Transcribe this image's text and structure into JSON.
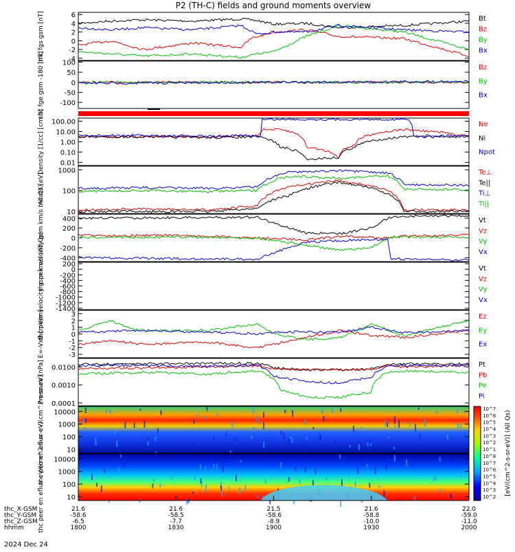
{
  "title": "P2 (TH-C) fields and ground moments overview",
  "colors": {
    "black": "#000000",
    "red": "#e00000",
    "green": "#00c000",
    "blue": "#0000e0"
  },
  "date_label": "2024 Dec 24",
  "colorbar": {
    "label": "[eV/(cm^2-s-sr-eV)] (All Qs)",
    "ticks": [
      "10^7",
      "10^6",
      "10^5",
      "10^4",
      "10^3",
      "10^2",
      "10^1",
      "10^8",
      "10^7",
      "10^6",
      "10^5",
      "10^4",
      "10^3",
      "10^2"
    ]
  },
  "x_axis": {
    "row_labels": [
      "thc_X-GSM",
      "thc_Y-GSM",
      "thc_Z-GSM",
      "hhmm"
    ],
    "ticks": [
      {
        "time": "1800",
        "values": [
          "21.6",
          "-58.6",
          "-6.5",
          "1800"
        ]
      },
      {
        "time": "1830",
        "values": [
          "21.6",
          "-58.5",
          "-7.7",
          "1830"
        ]
      },
      {
        "time": "1900",
        "values": [
          "21.5",
          "-58.6",
          "-8.9",
          "1900"
        ]
      },
      {
        "time": "1930",
        "values": [
          "21.6",
          "-58.8",
          "-10.0",
          "1930"
        ]
      },
      {
        "time": "2000",
        "values": [
          "22.0",
          "-59.0",
          "-11.0",
          "2000"
        ]
      }
    ]
  },
  "chart_data": [
    {
      "type": "line",
      "ylabel": "thc fgs gsm [nT]",
      "ylim": [
        -4.5,
        6.5
      ],
      "yticks": [
        "6",
        "4",
        "2",
        "0",
        "-2",
        "-4"
      ],
      "series": [
        {
          "name": "Bt",
          "color": "#000000",
          "x": [
            0,
            10,
            20,
            35,
            50,
            55,
            60,
            70,
            80,
            100,
            120
          ],
          "y": [
            4.0,
            4.5,
            4.8,
            4.5,
            5.0,
            4.6,
            3.8,
            4.0,
            3.0,
            3.5,
            4.5
          ]
        },
        {
          "name": "Bz",
          "color": "#e00000",
          "x": [
            0,
            10,
            20,
            35,
            50,
            53,
            60,
            70,
            80,
            100,
            120
          ],
          "y": [
            -1.0,
            0.0,
            -2.0,
            -0.5,
            -1.5,
            0.5,
            2.0,
            2.5,
            1.0,
            0.5,
            -3.5
          ]
        },
        {
          "name": "By",
          "color": "#00c000",
          "x": [
            0,
            10,
            20,
            35,
            50,
            55,
            60,
            70,
            80,
            100,
            120
          ],
          "y": [
            -2.5,
            -3.0,
            -3.5,
            -3.0,
            -3.8,
            -3.0,
            -2.5,
            1.0,
            3.5,
            2.0,
            -2.0
          ]
        },
        {
          "name": "Bx",
          "color": "#0000e0",
          "x": [
            0,
            10,
            20,
            35,
            50,
            55,
            60,
            70,
            80,
            100,
            120
          ],
          "y": [
            3.0,
            2.5,
            3.0,
            2.5,
            3.5,
            1.5,
            2.0,
            2.0,
            3.5,
            2.5,
            2.0
          ]
        }
      ]
    },
    {
      "type": "line",
      "ylabel": "thc fge gsm -180 [nT]",
      "ylim": [
        -130,
        105
      ],
      "yticks": [
        "100",
        "50",
        "0",
        "-50",
        "-100"
      ],
      "series": [
        {
          "name": "Bz",
          "color": "#e00000",
          "x": [
            0,
            120
          ],
          "y": [
            0,
            0
          ]
        },
        {
          "name": "By",
          "color": "#00c000",
          "x": [
            0,
            120
          ],
          "y": [
            0,
            0
          ]
        },
        {
          "name": "Bx",
          "color": "#0000e0",
          "x": [
            0,
            30,
            60,
            90,
            120
          ],
          "y": [
            -5,
            -3,
            0,
            2,
            5
          ]
        }
      ]
    },
    {
      "type": "line",
      "ylabel": "Density [1/cc] [cm-3]",
      "scale": "log",
      "ylim": [
        0.005,
        200
      ],
      "yticks": [
        "100.00",
        "10.00",
        "1.00",
        "0.10",
        "0.01"
      ],
      "series": [
        {
          "name": "Ne",
          "color": "#e00000",
          "x": [
            0,
            20,
            40,
            55,
            57,
            62,
            70,
            80,
            85,
            100,
            120
          ],
          "y": [
            3,
            3.5,
            3,
            4,
            15,
            15,
            0.3,
            0.03,
            0.5,
            15,
            3
          ]
        },
        {
          "name": "Ni",
          "color": "#000000",
          "x": [
            0,
            20,
            40,
            55,
            62,
            70,
            80,
            85,
            100,
            120
          ],
          "y": [
            3,
            3,
            2.5,
            3,
            0.3,
            0.02,
            0.03,
            0.3,
            3,
            3
          ]
        },
        {
          "name": "Npot",
          "color": "#0000e0",
          "x": [
            0,
            20,
            40,
            55,
            56,
            56.5,
            60,
            70,
            80,
            85,
            100,
            101,
            103,
            120
          ],
          "y": [
            4,
            4,
            3.5,
            4,
            4,
            150,
            150,
            150,
            150,
            150,
            150,
            150,
            4,
            4
          ]
        }
      ]
    },
    {
      "type": "line",
      "ylabel": "moat3 [eV]",
      "scale": "log",
      "ylim": [
        8,
        1500
      ],
      "yticks": [
        "1000",
        "100",
        "10"
      ],
      "series": [
        {
          "name": "Te⊥",
          "color": "#e00000",
          "x": [
            0,
            20,
            40,
            55,
            65,
            80,
            95,
            100,
            120
          ],
          "y": [
            12,
            13,
            12,
            18,
            150,
            300,
            100,
            12,
            12
          ]
        },
        {
          "name": "Te||",
          "color": "#000000",
          "x": [
            0,
            20,
            40,
            55,
            65,
            80,
            95,
            100,
            120
          ],
          "y": [
            10,
            10,
            10,
            14,
            60,
            250,
            70,
            10,
            10
          ]
        },
        {
          "name": "Ti⊥",
          "color": "#0000e0",
          "x": [
            0,
            20,
            40,
            55,
            65,
            80,
            95,
            100,
            120
          ],
          "y": [
            130,
            140,
            130,
            150,
            800,
            900,
            700,
            200,
            180
          ]
        },
        {
          "name": "Ti||",
          "color": "#00c000",
          "x": [
            0,
            20,
            40,
            55,
            65,
            80,
            95,
            100,
            120
          ],
          "y": [
            90,
            100,
            90,
            100,
            500,
            400,
            500,
            120,
            110
          ]
        }
      ]
    },
    {
      "type": "line",
      "ylabel": "thc peir velocity gsm km/s (All Qs)",
      "ylim": [
        -480,
        480
      ],
      "yticks": [
        "400",
        "200",
        "0",
        "-200",
        "-400"
      ],
      "series": [
        {
          "name": "Vt",
          "color": "#000000",
          "x": [
            0,
            30,
            55,
            60,
            70,
            80,
            90,
            95,
            100,
            120
          ],
          "y": [
            400,
            410,
            420,
            300,
            100,
            80,
            200,
            400,
            440,
            450
          ]
        },
        {
          "name": "Vz",
          "color": "#e00000",
          "x": [
            0,
            30,
            55,
            70,
            80,
            95,
            100,
            120
          ],
          "y": [
            50,
            50,
            0,
            -40,
            30,
            0,
            40,
            60
          ]
        },
        {
          "name": "Vy",
          "color": "#00c000",
          "x": [
            0,
            30,
            55,
            70,
            80,
            90,
            95,
            100,
            120
          ],
          "y": [
            0,
            20,
            0,
            -150,
            -250,
            -200,
            0,
            20,
            0
          ]
        },
        {
          "name": "Vx",
          "color": "#0000e0",
          "x": [
            0,
            30,
            55,
            60,
            70,
            80,
            95,
            96,
            100,
            120
          ],
          "y": [
            -400,
            -420,
            -430,
            -300,
            -80,
            -60,
            -20,
            -420,
            -430,
            -450
          ]
        }
      ]
    },
    {
      "type": "line",
      "ylabel": "thc peer velocity gsm km/s (All Qs)",
      "ylim": [
        -1450,
        250
      ],
      "yticks": [
        "200",
        "0",
        "-200",
        "-400",
        "-600",
        "-800",
        "-1000",
        "-1200",
        "-1400"
      ],
      "series": [
        {
          "name": "Vt",
          "color": "#000000",
          "x": [],
          "y": []
        },
        {
          "name": "Vz",
          "color": "#e00000",
          "x": [],
          "y": []
        },
        {
          "name": "Vy",
          "color": "#00c000",
          "x": [],
          "y": []
        },
        {
          "name": "Vx",
          "color": "#0000e0",
          "x": [],
          "y": []
        }
      ]
    },
    {
      "type": "line",
      "ylabel": "E=-VxB [mV/m]",
      "ylim": [
        -3.5,
        3.5
      ],
      "yticks": [
        "3",
        "2",
        "1",
        "0",
        "-1",
        "-2",
        "-3"
      ],
      "series": [
        {
          "name": "Ez",
          "color": "#e00000",
          "x": [
            0,
            10,
            20,
            40,
            55,
            60,
            70,
            80,
            90,
            100,
            120
          ],
          "y": [
            -1.5,
            -1.0,
            -1.5,
            -1.2,
            -2.0,
            -1.5,
            -0.5,
            0.5,
            -0.2,
            -0.5,
            0.5
          ]
        },
        {
          "name": "Ey",
          "color": "#00c000",
          "x": [
            0,
            10,
            15,
            20,
            40,
            55,
            60,
            70,
            80,
            90,
            100,
            120
          ],
          "y": [
            0.5,
            2.0,
            1.0,
            0.5,
            0.5,
            1.5,
            0.0,
            -0.8,
            -0.6,
            1.5,
            -0.3,
            2.0
          ]
        },
        {
          "name": "Ex",
          "color": "#0000e0",
          "x": [
            0,
            20,
            40,
            55,
            60,
            70,
            80,
            90,
            100,
            120
          ],
          "y": [
            0.3,
            0.5,
            0.3,
            0.0,
            0.3,
            0.3,
            0.2,
            1.0,
            0.2,
            0.5
          ]
        }
      ]
    },
    {
      "type": "line",
      "ylabel": "Pressure [nPa]",
      "scale": "log",
      "ylim": [
        7e-05,
        0.03
      ],
      "yticks": [
        "0.0100",
        "0.0010",
        "0.0001"
      ],
      "series": [
        {
          "name": "Pt",
          "color": "#000000",
          "x": [
            0,
            20,
            40,
            55,
            60,
            70,
            80,
            90,
            95,
            100,
            120
          ],
          "y": [
            0.014,
            0.015,
            0.016,
            0.016,
            0.009,
            0.007,
            0.007,
            0.008,
            0.014,
            0.015,
            0.015
          ]
        },
        {
          "name": "Pb",
          "color": "#e00000",
          "x": [
            0,
            20,
            40,
            55,
            60,
            70,
            80,
            90,
            95,
            100,
            120
          ],
          "y": [
            0.008,
            0.009,
            0.01,
            0.012,
            0.008,
            0.007,
            0.007,
            0.007,
            0.012,
            0.01,
            0.012
          ]
        },
        {
          "name": "Pe",
          "color": "#00c000",
          "x": [
            0,
            20,
            40,
            55,
            62,
            70,
            80,
            90,
            95,
            100,
            120
          ],
          "y": [
            0.004,
            0.005,
            0.004,
            0.006,
            0.0005,
            0.0002,
            0.0002,
            0.0004,
            0.005,
            0.006,
            0.005
          ]
        },
        {
          "name": "Pi",
          "color": "#0000e0",
          "x": [
            0,
            20,
            40,
            55,
            60,
            70,
            80,
            90,
            95,
            100,
            120
          ],
          "y": [
            0.012,
            0.012,
            0.011,
            0.012,
            0.003,
            0.0015,
            0.0013,
            0.0025,
            0.011,
            0.012,
            0.012
          ]
        }
      ]
    },
    {
      "type": "heatmap",
      "ylabel": "thc peir en eflux eV/(cm^2-s-sr-eV)",
      "scale": "log",
      "ylim": [
        5,
        25000
      ],
      "yticks": [
        "10000",
        "1000",
        "100",
        "10"
      ]
    },
    {
      "type": "heatmap",
      "ylabel": "thc peer en eflux eV/(cm^2-s-sr-eV)",
      "scale": "log",
      "ylim": [
        5,
        25000
      ],
      "yticks": [
        "10000",
        "1000",
        "100",
        "10"
      ]
    }
  ]
}
